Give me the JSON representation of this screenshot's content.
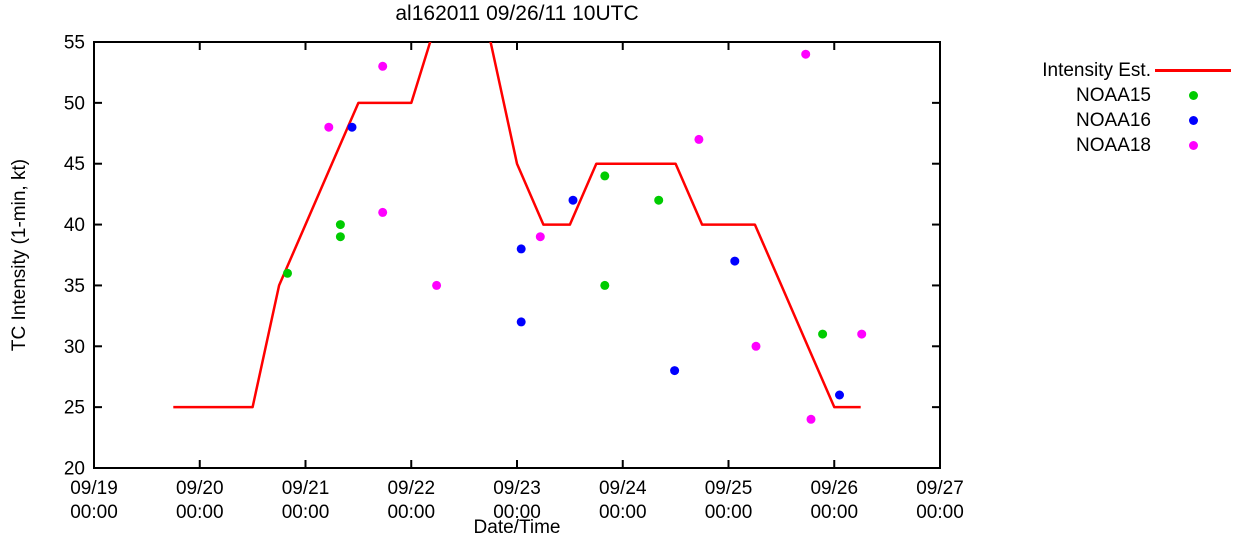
{
  "title": "al162011 09/26/11 10UTC",
  "legend": {
    "items": [
      {
        "label": "Intensity Est.",
        "marker": "line",
        "color": "#ff0000"
      },
      {
        "label": "NOAA15",
        "marker": "dot",
        "color": "#00cc00"
      },
      {
        "label": "NOAA16",
        "marker": "dot",
        "color": "#0000ff"
      },
      {
        "label": "NOAA18",
        "marker": "dot",
        "color": "#ff00ff"
      }
    ]
  },
  "chart_data": {
    "type": "line",
    "title": "al162011 09/26/11 10UTC",
    "xlabel": "Date/Time",
    "ylabel": "TC Intensity (1-min, kt)",
    "ylim": [
      20,
      55
    ],
    "y_ticks": [
      "20",
      "25",
      "30",
      "35",
      "40",
      "45",
      "50",
      "55"
    ],
    "x_ticks": [
      {
        "date": "09/19",
        "time": "00:00"
      },
      {
        "date": "09/20",
        "time": "00:00"
      },
      {
        "date": "09/21",
        "time": "00:00"
      },
      {
        "date": "09/22",
        "time": "00:00"
      },
      {
        "date": "09/23",
        "time": "00:00"
      },
      {
        "date": "09/24",
        "time": "00:00"
      },
      {
        "date": "09/25",
        "time": "00:00"
      },
      {
        "date": "09/26",
        "time": "00:00"
      },
      {
        "date": "09/27",
        "time": "00:00"
      }
    ],
    "x_units": "days since 09/19 00:00",
    "x_range_days": [
      0,
      8
    ],
    "grid": false,
    "legend_position": "outside-top-right",
    "series": [
      {
        "name": "Intensity Est.",
        "type": "line",
        "color": "#ff0000",
        "points": [
          [
            0.75,
            25
          ],
          [
            1.5,
            25
          ],
          [
            1.75,
            35
          ],
          [
            2.0,
            40
          ],
          [
            2.25,
            45
          ],
          [
            2.5,
            50
          ],
          [
            3.0,
            50
          ],
          [
            3.25,
            57
          ],
          [
            3.5,
            63
          ],
          [
            3.75,
            55
          ],
          [
            4.0,
            45
          ],
          [
            4.25,
            40
          ],
          [
            4.5,
            40
          ],
          [
            4.75,
            45
          ],
          [
            5.5,
            45
          ],
          [
            5.75,
            40
          ],
          [
            6.25,
            40
          ],
          [
            6.5,
            35
          ],
          [
            6.75,
            30
          ],
          [
            7.0,
            25
          ],
          [
            7.25,
            25
          ]
        ]
      },
      {
        "name": "NOAA15",
        "type": "scatter",
        "color": "#00cc00",
        "points": [
          [
            1.83,
            36
          ],
          [
            2.33,
            40
          ],
          [
            2.33,
            39
          ],
          [
            4.83,
            44
          ],
          [
            4.83,
            35
          ],
          [
            5.34,
            42
          ],
          [
            6.89,
            31
          ]
        ]
      },
      {
        "name": "NOAA16",
        "type": "scatter",
        "color": "#0000ff",
        "points": [
          [
            2.44,
            48
          ],
          [
            4.04,
            38
          ],
          [
            4.04,
            32
          ],
          [
            4.53,
            42
          ],
          [
            5.49,
            28
          ],
          [
            6.06,
            37
          ],
          [
            7.05,
            26
          ]
        ]
      },
      {
        "name": "NOAA18",
        "type": "scatter",
        "color": "#ff00ff",
        "points": [
          [
            2.22,
            48
          ],
          [
            2.73,
            53
          ],
          [
            2.73,
            41
          ],
          [
            3.24,
            35
          ],
          [
            4.22,
            39
          ],
          [
            5.72,
            47
          ],
          [
            6.26,
            30
          ],
          [
            6.73,
            54
          ],
          [
            6.78,
            24
          ],
          [
            7.26,
            31
          ]
        ]
      }
    ]
  }
}
